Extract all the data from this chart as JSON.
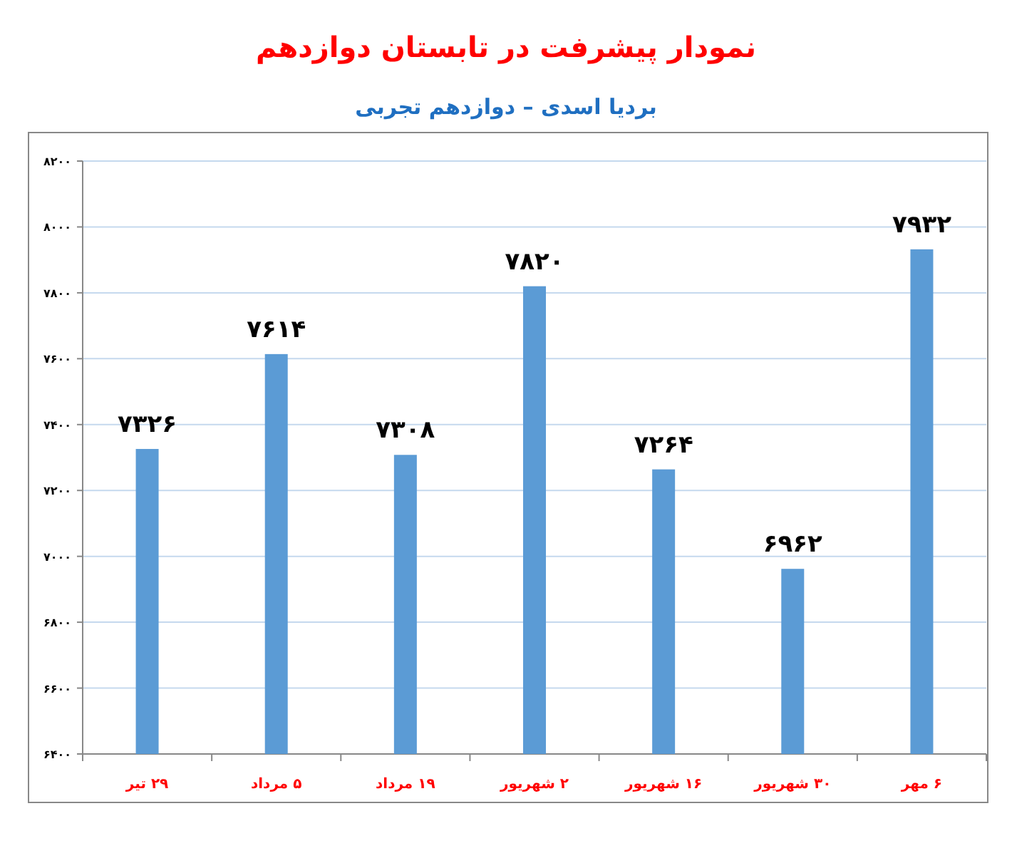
{
  "chart_data": {
    "type": "bar",
    "title": "نمودار پیشرفت در تابستان دوازدهم",
    "subtitle": "بردیا اسدی – دوازدهم تجربی",
    "categories": [
      "۲۹ تیر",
      "۵ مرداد",
      "۱۹ مرداد",
      "۲ شهریور",
      "۱۶ شهریور",
      "۳۰ شهریور",
      "۶ مهر"
    ],
    "values": [
      7326,
      7614,
      7308,
      7820,
      7264,
      6962,
      7932
    ],
    "value_labels": [
      "۷۳۲۶",
      "۷۶۱۴",
      "۷۳۰۸",
      "۷۸۲۰",
      "۷۲۶۴",
      "۶۹۶۲",
      "۷۹۳۲"
    ],
    "color": "#5b9bd5",
    "ylim": [
      6400,
      8200
    ],
    "yticks": [
      {
        "value": 6400,
        "label": "۶۴۰۰"
      },
      {
        "value": 6600,
        "label": "۶۶۰۰"
      },
      {
        "value": 6800,
        "label": "۶۸۰۰"
      },
      {
        "value": 7000,
        "label": "۷۰۰۰"
      },
      {
        "value": 7200,
        "label": "۷۲۰۰"
      },
      {
        "value": 7400,
        "label": "۷۴۰۰"
      },
      {
        "value": 7600,
        "label": "۷۶۰۰"
      },
      {
        "value": 7800,
        "label": "۷۸۰۰"
      },
      {
        "value": 8000,
        "label": "۸۰۰۰"
      },
      {
        "value": 8200,
        "label": "۸۲۰۰"
      }
    ],
    "grid": "y"
  }
}
